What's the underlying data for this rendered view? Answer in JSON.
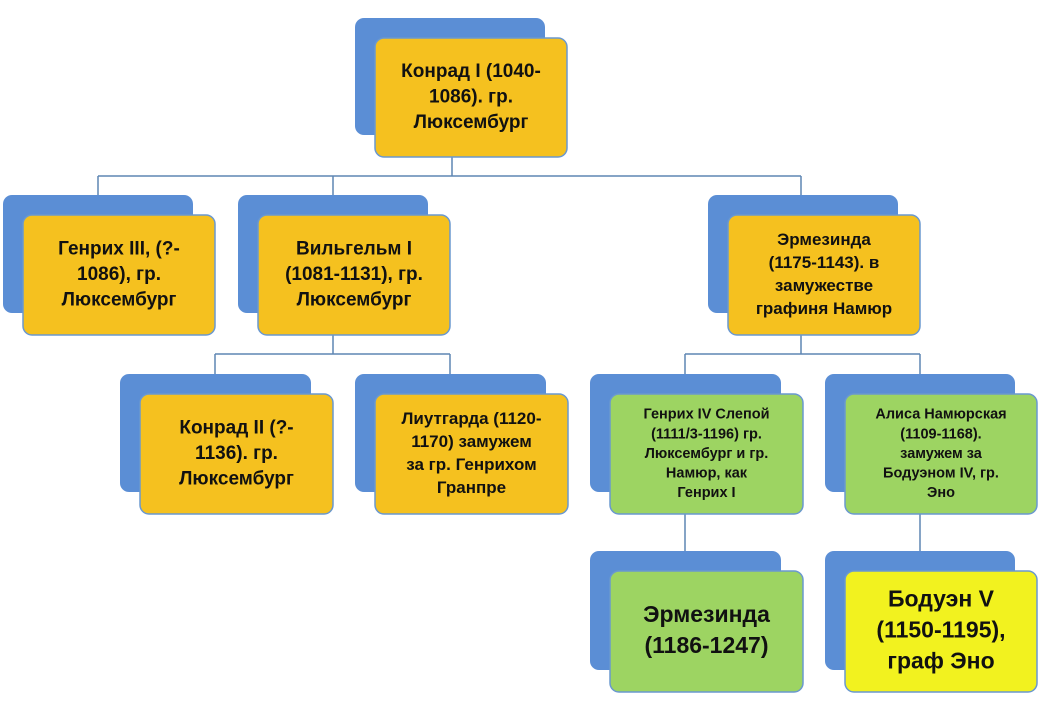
{
  "nodes": [
    {
      "lines": [
        "Конрад I (1040-",
        "1086). гр.",
        "Люксембург"
      ]
    },
    {
      "lines": [
        "Генрих III, (?-",
        "1086), гр.",
        "Люксембург"
      ]
    },
    {
      "lines": [
        "Вильгельм I",
        "(1081-1131), гр.",
        "Люксембург"
      ]
    },
    {
      "lines": [
        "Эрмезинда",
        "(1175-1143). в",
        "замужестве",
        "графиня Намюр"
      ]
    },
    {
      "lines": [
        "Конрад II (?-",
        "1136). гр.",
        "Люксембург"
      ]
    },
    {
      "lines": [
        "Лиутгарда (1120-",
        "1170) замужем",
        "за гр. Генрихом",
        "Гранпре"
      ]
    },
    {
      "lines": [
        "Генрих IV Слепой",
        "(1111/3-1196) гр.",
        "Люксембург и гр.",
        "Намюр, как",
        "Генрих I"
      ]
    },
    {
      "lines": [
        "Алиса Намюрская",
        "(1109-1168).",
        "замужем за",
        "Бодуэном IV, гр.",
        "Эно"
      ]
    },
    {
      "lines": [
        "Эрмезинда",
        "(1186-1247)"
      ]
    },
    {
      "lines": [
        "Бодуэн V",
        "(1150-1195),",
        "граф Эно"
      ]
    }
  ]
}
